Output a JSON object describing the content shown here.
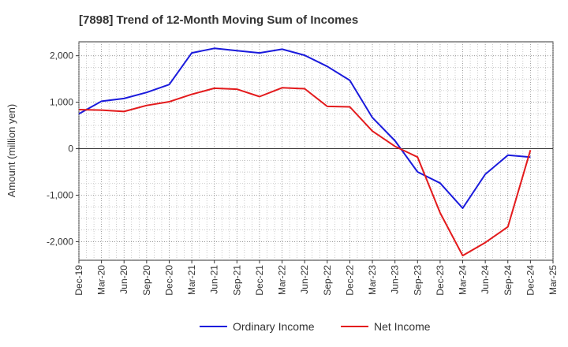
{
  "chart_data": {
    "type": "line",
    "title": "[7898]  Trend of 12-Month Moving Sum of Incomes",
    "xlabel": "",
    "ylabel": "Amount (million yen)",
    "x": [
      "Dec-19",
      "Mar-20",
      "Jun-20",
      "Sep-20",
      "Dec-20",
      "Mar-21",
      "Jun-21",
      "Sep-21",
      "Dec-21",
      "Mar-22",
      "Jun-22",
      "Sep-22",
      "Dec-22",
      "Mar-23",
      "Jun-23",
      "Sep-23",
      "Dec-23",
      "Mar-24",
      "Jun-24",
      "Sep-24",
      "Dec-24",
      "Mar-25"
    ],
    "x_tick_labels": [
      "Dec-19",
      "Mar-20",
      "Jun-20",
      "Sep-20",
      "Dec-20",
      "Mar-21",
      "Jun-21",
      "Sep-21",
      "Dec-21",
      "Mar-22",
      "Jun-22",
      "Sep-22",
      "Dec-22",
      "Mar-23",
      "Jun-23",
      "Sep-23",
      "Dec-23",
      "Mar-24",
      "Jun-24",
      "Sep-24",
      "Dec-24",
      "Mar-25"
    ],
    "y_ticks": [
      2000,
      1000,
      0,
      -1000,
      -2000
    ],
    "y_tick_labels": [
      "2,000",
      "1,000",
      "0",
      "-1,000",
      "-2,000"
    ],
    "ylim": [
      -2400,
      2300
    ],
    "series": [
      {
        "name": "Ordinary Income",
        "color": "#1a1adc",
        "values": [
          750,
          1020,
          1080,
          1210,
          1380,
          2060,
          2160,
          2110,
          2060,
          2140,
          2010,
          1770,
          1470,
          670,
          170,
          -500,
          -740,
          -1280,
          -550,
          -140,
          -180,
          null
        ]
      },
      {
        "name": "Net Income",
        "color": "#e31a1c",
        "values": [
          840,
          830,
          800,
          930,
          1010,
          1170,
          1300,
          1280,
          1120,
          1310,
          1290,
          910,
          900,
          380,
          50,
          -180,
          -1380,
          -2300,
          -2020,
          -1680,
          -30,
          null
        ]
      }
    ],
    "grid": true,
    "legend_position": "bottom"
  }
}
